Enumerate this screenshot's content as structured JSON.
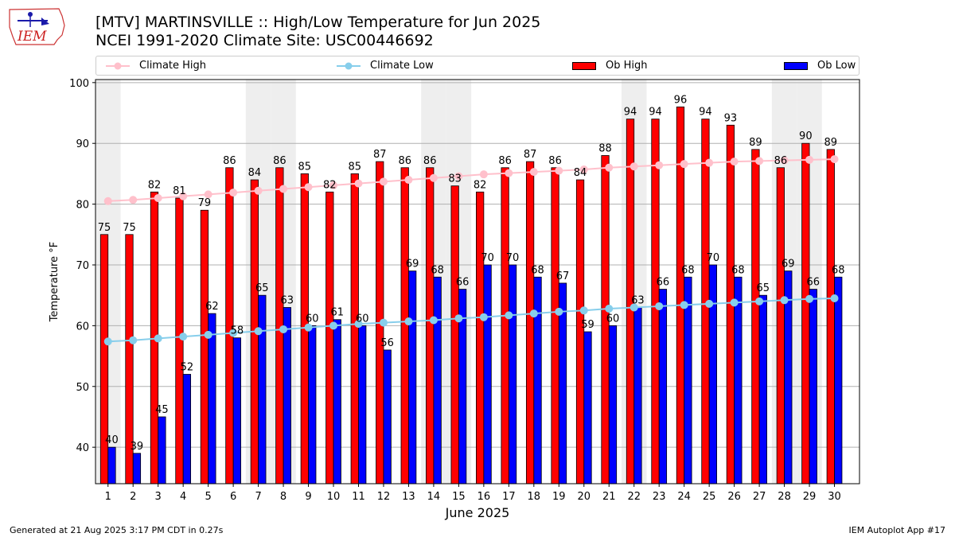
{
  "header": {
    "title_line1": "[MTV] MARTINSVILLE :: High/Low Temperature for Jun 2025",
    "title_line2": "NCEI 1991-2020 Climate Site: USC00446692",
    "logo_text": "IEM"
  },
  "footer": {
    "generated": "Generated at 21 Aug 2025 3:17 PM CDT in 0.27s",
    "app": "IEM Autoplot App #17"
  },
  "legend": {
    "climate_high": "Climate High",
    "climate_low": "Climate Low",
    "ob_high": "Ob High",
    "ob_low": "Ob Low"
  },
  "colors": {
    "ob_high": "#ff0000",
    "ob_low": "#0000ff",
    "climate_high": "#ffc0cb",
    "climate_low": "#87ceeb",
    "weekend_shade": "#eeeeee",
    "grid": "#b0b0b0"
  },
  "chart_data": {
    "type": "bar",
    "title": "[MTV] MARTINSVILLE :: High/Low Temperature for Jun 2025",
    "subtitle": "NCEI 1991-2020 Climate Site: USC00446692",
    "xlabel": "June 2025",
    "ylabel": "Temperature °F",
    "ylim": [
      34,
      100.5
    ],
    "yticks": [
      40,
      50,
      60,
      70,
      80,
      90,
      100
    ],
    "grid": true,
    "legend_placement": "top",
    "categories": [
      "1",
      "2",
      "3",
      "4",
      "5",
      "6",
      "7",
      "8",
      "9",
      "10",
      "11",
      "12",
      "13",
      "14",
      "15",
      "16",
      "17",
      "18",
      "19",
      "20",
      "21",
      "22",
      "23",
      "24",
      "25",
      "26",
      "27",
      "28",
      "29",
      "30"
    ],
    "shaded_days": [
      1,
      7,
      8,
      14,
      15,
      22,
      28,
      29
    ],
    "series": [
      {
        "name": "Ob High",
        "kind": "bar",
        "values": [
          75,
          75,
          82,
          81,
          79,
          86,
          84,
          86,
          85,
          82,
          85,
          87,
          86,
          86,
          83,
          82,
          86,
          87,
          86,
          84,
          88,
          94,
          94,
          96,
          94,
          93,
          89,
          86,
          90,
          89
        ]
      },
      {
        "name": "Ob Low",
        "kind": "bar",
        "values": [
          40,
          39,
          45,
          52,
          62,
          58,
          65,
          63,
          60,
          61,
          60,
          56,
          69,
          68,
          66,
          70,
          70,
          68,
          67,
          59,
          60,
          63,
          66,
          68,
          70,
          68,
          65,
          69,
          66,
          68
        ]
      },
      {
        "name": "Climate High",
        "kind": "line",
        "values": [
          80.5,
          80.7,
          81.0,
          81.3,
          81.6,
          81.9,
          82.2,
          82.5,
          82.8,
          83.1,
          83.4,
          83.7,
          84.0,
          84.3,
          84.6,
          84.9,
          85.1,
          85.3,
          85.5,
          85.7,
          86.0,
          86.2,
          86.4,
          86.6,
          86.8,
          87.0,
          87.1,
          87.2,
          87.3,
          87.4
        ]
      },
      {
        "name": "Climate Low",
        "kind": "line",
        "values": [
          57.4,
          57.6,
          57.9,
          58.2,
          58.5,
          58.8,
          59.1,
          59.4,
          59.7,
          60.0,
          60.3,
          60.5,
          60.7,
          60.9,
          61.2,
          61.4,
          61.7,
          62.0,
          62.3,
          62.5,
          62.8,
          63.0,
          63.2,
          63.4,
          63.6,
          63.8,
          64.0,
          64.2,
          64.4,
          64.5
        ]
      }
    ]
  }
}
